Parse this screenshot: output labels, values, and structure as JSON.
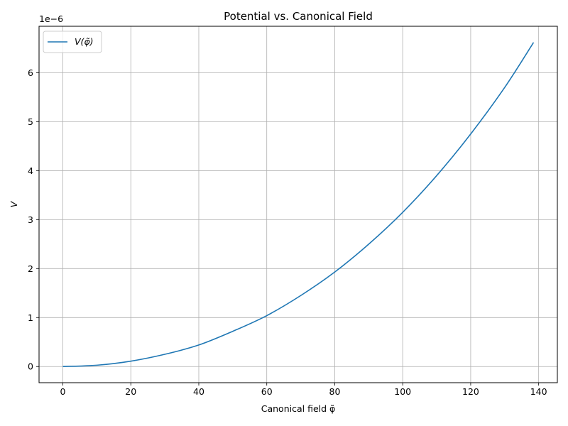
{
  "chart_data": {
    "type": "line",
    "title": "Potential vs. Canonical Field",
    "xlabel": "Canonical field φ̃",
    "ylabel": "V",
    "y_offset_label": "1e−6",
    "y_scale_factor": 1e-06,
    "xlim": [
      -7,
      145.5
    ],
    "ylim": [
      -0.33,
      6.95
    ],
    "x_ticks": [
      0,
      20,
      40,
      60,
      80,
      100,
      120,
      140
    ],
    "y_ticks": [
      0,
      1,
      2,
      3,
      4,
      5,
      6
    ],
    "grid": true,
    "legend_position": "top-left",
    "series": [
      {
        "name": "V(φ̃)",
        "color": "#1f77b4",
        "x": [
          0,
          10,
          20,
          30,
          40,
          50,
          60,
          70,
          80,
          90,
          100,
          110,
          120,
          130,
          138.5
        ],
        "y": [
          0,
          0.027,
          0.11,
          0.25,
          0.44,
          0.72,
          1.04,
          1.45,
          1.93,
          2.5,
          3.15,
          3.9,
          4.75,
          5.7,
          6.62
        ]
      }
    ]
  }
}
